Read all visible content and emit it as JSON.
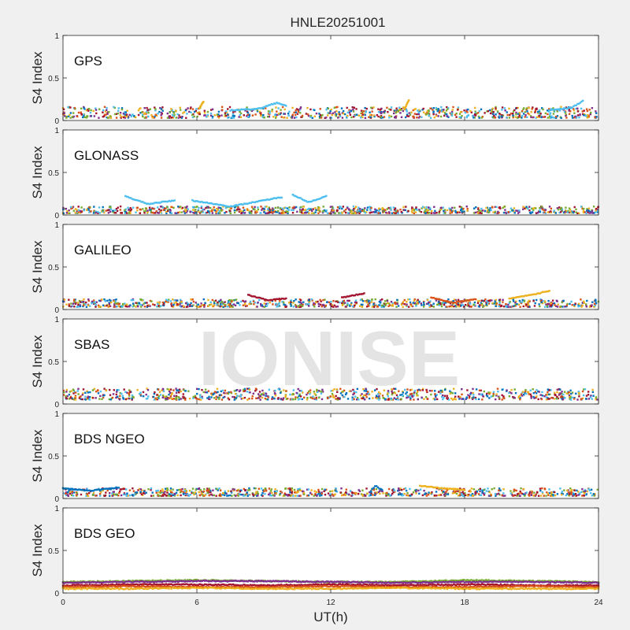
{
  "figure": {
    "title": "HNLE20251001",
    "xlabel": "UT(h)",
    "watermark": "IONISE",
    "colors": {
      "background": "#f0f0f0",
      "axes_face": "#ffffff",
      "watermark": "#e4e4e4",
      "palette": [
        "#0072bd",
        "#d95319",
        "#edb120",
        "#7e2f8e",
        "#77ac30",
        "#4dbeee",
        "#a2142f"
      ]
    }
  },
  "chart_data": [
    {
      "type": "scatter",
      "panel_label": "GPS",
      "ylabel": "S4 Index",
      "xlim": [
        0,
        24
      ],
      "ylim": [
        0,
        1
      ],
      "xticks": [
        "0",
        "6",
        "12",
        "18",
        "24"
      ],
      "yticks": [
        "0",
        "0.5",
        "1"
      ],
      "grid": false,
      "baseline_range": [
        0.03,
        0.16
      ],
      "arcs": [
        {
          "x": [
            6.1,
            6.3
          ],
          "y": [
            0.14,
            0.22
          ],
          "color": "#edb120"
        },
        {
          "x": [
            7.5,
            8.8,
            9.6,
            10.0
          ],
          "y": [
            0.12,
            0.14,
            0.21,
            0.17
          ],
          "color": "#4dbeee"
        },
        {
          "x": [
            15.3,
            15.5
          ],
          "y": [
            0.13,
            0.24
          ],
          "color": "#edb120"
        },
        {
          "x": [
            21.8,
            22.8,
            23.3
          ],
          "y": [
            0.12,
            0.15,
            0.23
          ],
          "color": "#4dbeee"
        }
      ]
    },
    {
      "type": "scatter",
      "panel_label": "GLONASS",
      "ylabel": "S4 Index",
      "xlim": [
        0,
        24
      ],
      "ylim": [
        0,
        1
      ],
      "xticks": [
        "0",
        "6",
        "12",
        "18",
        "24"
      ],
      "yticks": [
        "0",
        "0.5",
        "1"
      ],
      "grid": false,
      "baseline_range": [
        0.02,
        0.1
      ],
      "arcs": [
        {
          "x": [
            2.8,
            3.8,
            5.0
          ],
          "y": [
            0.22,
            0.13,
            0.17
          ],
          "color": "#4dbeee"
        },
        {
          "x": [
            5.8,
            7.5,
            9.8
          ],
          "y": [
            0.17,
            0.1,
            0.21
          ],
          "color": "#4dbeee"
        },
        {
          "x": [
            10.3,
            11.0,
            11.8
          ],
          "y": [
            0.24,
            0.15,
            0.22
          ],
          "color": "#4dbeee"
        }
      ]
    },
    {
      "type": "scatter",
      "panel_label": "GALILEO",
      "ylabel": "S4 Index",
      "xlim": [
        0,
        24
      ],
      "ylim": [
        0,
        1
      ],
      "xticks": [
        "0",
        "6",
        "12",
        "18",
        "24"
      ],
      "yticks": [
        "0",
        "0.5",
        "1"
      ],
      "grid": false,
      "baseline_range": [
        0.03,
        0.12
      ],
      "arcs": [
        {
          "x": [
            8.3,
            9.2,
            10.0
          ],
          "y": [
            0.17,
            0.11,
            0.13
          ],
          "color": "#a2142f"
        },
        {
          "x": [
            12.5,
            13.5
          ],
          "y": [
            0.14,
            0.19
          ],
          "color": "#a2142f"
        },
        {
          "x": [
            16.5,
            17.5,
            18.5
          ],
          "y": [
            0.14,
            0.08,
            0.12
          ],
          "color": "#d95319"
        },
        {
          "x": [
            20.0,
            21.0,
            21.8
          ],
          "y": [
            0.13,
            0.17,
            0.22
          ],
          "color": "#edb120"
        }
      ]
    },
    {
      "type": "scatter",
      "panel_label": "SBAS",
      "ylabel": "S4 Index",
      "xlim": [
        0,
        24
      ],
      "ylim": [
        0,
        1
      ],
      "xticks": [
        "0",
        "6",
        "12",
        "18",
        "24"
      ],
      "yticks": [
        "0",
        "0.5",
        "1"
      ],
      "grid": false,
      "baseline_range": [
        0.05,
        0.18
      ],
      "arcs": []
    },
    {
      "type": "scatter",
      "panel_label": "BDS NGEO",
      "ylabel": "S4 Index",
      "xlim": [
        0,
        24
      ],
      "ylim": [
        0,
        1
      ],
      "xticks": [
        "0",
        "6",
        "12",
        "18",
        "24"
      ],
      "yticks": [
        "0",
        "0.5",
        "1"
      ],
      "grid": false,
      "baseline_range": [
        0.03,
        0.12
      ],
      "arcs": [
        {
          "x": [
            0.0,
            1.2,
            2.5
          ],
          "y": [
            0.12,
            0.09,
            0.13
          ],
          "color": "#0072bd"
        },
        {
          "x": [
            13.8,
            14.0,
            14.3
          ],
          "y": [
            0.09,
            0.15,
            0.1
          ],
          "color": "#0072bd"
        },
        {
          "x": [
            16.0,
            17.0,
            18.0
          ],
          "y": [
            0.15,
            0.12,
            0.1
          ],
          "color": "#edb120"
        }
      ]
    },
    {
      "type": "scatter",
      "panel_label": "BDS GEO",
      "ylabel": "S4 Index",
      "xlim": [
        0,
        24
      ],
      "ylim": [
        0,
        1
      ],
      "xticks": [
        "0",
        "6",
        "12",
        "18",
        "24"
      ],
      "yticks": [
        "0",
        "0.5",
        "1"
      ],
      "grid": false,
      "baseline_range": [
        0.04,
        0.16
      ],
      "geo_series": [
        {
          "color": "#77ac30",
          "y": [
            0.13,
            0.14,
            0.15,
            0.14,
            0.13,
            0.13,
            0.15,
            0.14,
            0.13
          ]
        },
        {
          "color": "#7e2f8e",
          "y": [
            0.12,
            0.13,
            0.14,
            0.14,
            0.13,
            0.12,
            0.13,
            0.13,
            0.12
          ]
        },
        {
          "color": "#a2142f",
          "y": [
            0.09,
            0.1,
            0.1,
            0.09,
            0.1,
            0.09,
            0.1,
            0.09,
            0.09
          ]
        },
        {
          "color": "#d95319",
          "y": [
            0.07,
            0.08,
            0.07,
            0.07,
            0.08,
            0.07,
            0.07,
            0.08,
            0.07
          ]
        },
        {
          "color": "#edb120",
          "y": [
            0.05,
            0.05,
            0.06,
            0.05,
            0.05,
            0.06,
            0.05,
            0.05,
            0.05
          ]
        }
      ]
    }
  ]
}
